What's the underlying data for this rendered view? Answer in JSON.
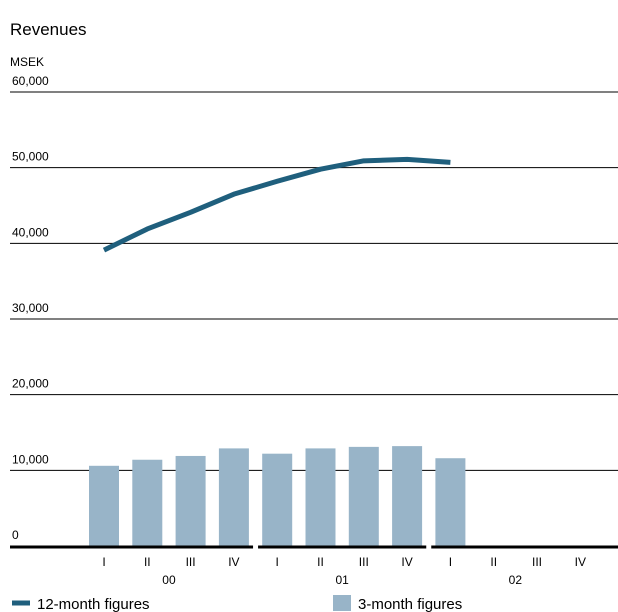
{
  "chart_data": {
    "type": "bar-line",
    "title": "Revenues",
    "y_label": "MSEK",
    "categories": [
      "I",
      "II",
      "III",
      "IV",
      "I",
      "II",
      "III",
      "IV",
      "I",
      "II",
      "III",
      "IV"
    ],
    "groups": [
      "00",
      "01",
      "02"
    ],
    "series": [
      {
        "name": "12-month figures",
        "type": "line",
        "color": "#1f5f7d",
        "values": [
          39100,
          41900,
          44100,
          46500,
          48200,
          49800,
          50900,
          51100,
          50700,
          null,
          null,
          null
        ]
      },
      {
        "name": "3-month figures",
        "type": "bar",
        "color": "#98b4c8",
        "values": [
          10600,
          11400,
          11900,
          12900,
          12200,
          12900,
          13100,
          13200,
          11600,
          null,
          null,
          null
        ]
      }
    ],
    "ylim": [
      0,
      60000
    ],
    "yticks": [
      0,
      {
        "value": 10000,
        "label": "10,000"
      },
      {
        "value": 20000,
        "label": "20,000"
      },
      {
        "value": 30000,
        "label": "30,000"
      },
      {
        "value": 40000,
        "label": "40,000"
      },
      {
        "value": 50000,
        "label": "50,000"
      },
      {
        "value": 60000,
        "label": "60,000"
      }
    ],
    "grid": true
  }
}
